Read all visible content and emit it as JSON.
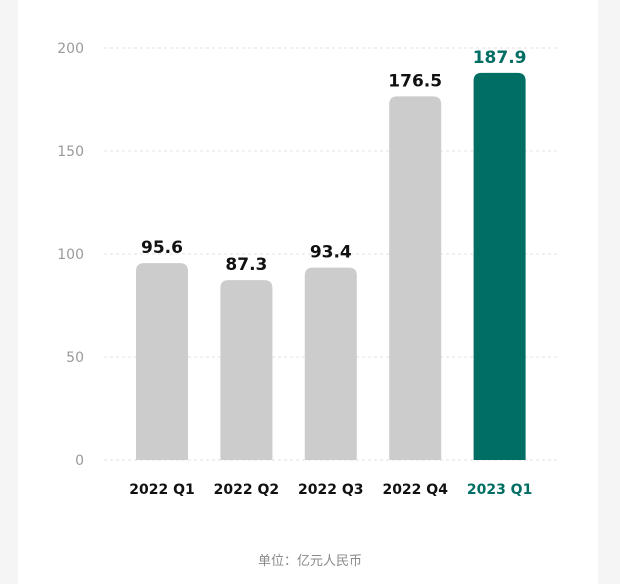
{
  "chart_data": {
    "type": "bar",
    "categories": [
      "2022 Q1",
      "2022 Q2",
      "2022 Q3",
      "2022 Q4",
      "2023 Q1"
    ],
    "values": [
      95.6,
      87.3,
      93.4,
      176.5,
      187.9
    ],
    "value_labels": [
      "95.6",
      "87.3",
      "93.4",
      "176.5",
      "187.9"
    ],
    "y_ticks": [
      "0",
      "50",
      "100",
      "150",
      "200"
    ],
    "ylim": [
      0,
      200
    ],
    "grid": true,
    "highlight_index": 4,
    "unit_label": "单位：亿元人民币"
  },
  "colors": {
    "bar": "#cccccc",
    "highlight": "#006e63",
    "label": "#111111",
    "tick": "#9a9a9a",
    "grid": "#e2e2e2"
  }
}
